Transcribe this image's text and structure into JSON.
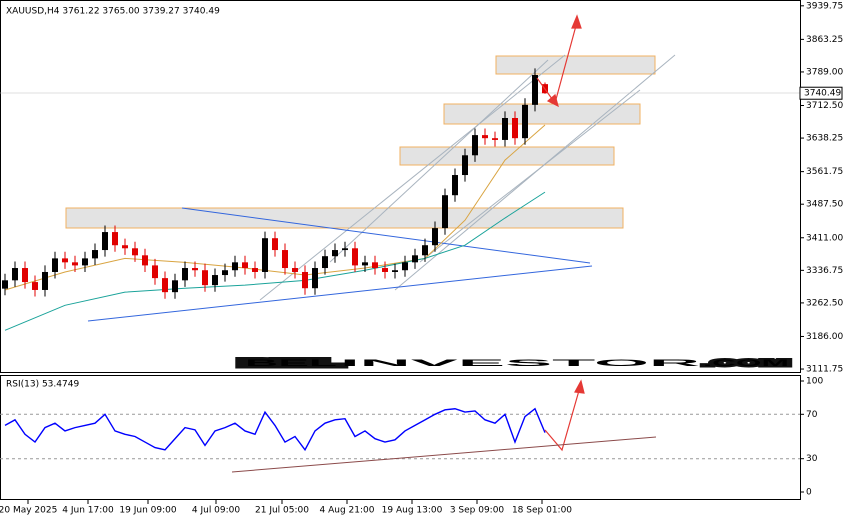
{
  "chart_data": [
    {
      "type": "candlestick",
      "title": "XAUUSD,H4  3761.22 3765.00 3739.27 3740.49",
      "watermark": [
        "BEL",
        "INVESTOR",
        ".COM"
      ],
      "open": [
        3295,
        3314,
        3342,
        3310,
        3292,
        3333,
        3364,
        3355,
        3348,
        3364,
        3383,
        3424,
        3394,
        3387,
        3371,
        3348,
        3319,
        3287,
        3314,
        3342,
        3337,
        3303,
        3326,
        3337,
        3355,
        3342,
        3333,
        3410,
        3383,
        3342,
        3333,
        3296,
        3342,
        3369,
        3383,
        3387,
        3348,
        3355,
        3342,
        3333,
        3337,
        3355,
        3371,
        3394,
        3433,
        3508,
        3554,
        3599,
        3645,
        3638,
        3634,
        3684,
        3638,
        3714,
        3761.22
      ],
      "high": [
        3329,
        3357,
        3357,
        3325,
        3348,
        3379,
        3379,
        3370,
        3379,
        3398,
        3439,
        3439,
        3409,
        3402,
        3386,
        3363,
        3334,
        3329,
        3357,
        3357,
        3352,
        3341,
        3352,
        3370,
        3370,
        3357,
        3425,
        3425,
        3398,
        3357,
        3348,
        3357,
        3384,
        3398,
        3402,
        3402,
        3370,
        3370,
        3357,
        3352,
        3370,
        3386,
        3409,
        3448,
        3523,
        3569,
        3614,
        3660,
        3660,
        3653,
        3699,
        3699,
        3729,
        3797,
        3765
      ],
      "low": [
        3280,
        3299,
        3295,
        3277,
        3277,
        3318,
        3340,
        3333,
        3333,
        3349,
        3368,
        3379,
        3372,
        3356,
        3333,
        3304,
        3272,
        3272,
        3299,
        3322,
        3288,
        3288,
        3311,
        3322,
        3327,
        3318,
        3318,
        3368,
        3327,
        3318,
        3281,
        3281,
        3327,
        3354,
        3368,
        3333,
        3333,
        3327,
        3318,
        3318,
        3322,
        3340,
        3356,
        3379,
        3418,
        3493,
        3539,
        3584,
        3623,
        3619,
        3619,
        3623,
        3623,
        3699,
        3739.27
      ],
      "close": [
        3314,
        3342,
        3310,
        3292,
        3333,
        3364,
        3355,
        3348,
        3364,
        3383,
        3424,
        3394,
        3387,
        3371,
        3348,
        3319,
        3287,
        3314,
        3342,
        3337,
        3303,
        3326,
        3337,
        3355,
        3342,
        3333,
        3410,
        3383,
        3342,
        3333,
        3296,
        3342,
        3369,
        3383,
        3387,
        3348,
        3355,
        3342,
        3333,
        3337,
        3355,
        3371,
        3394,
        3433,
        3508,
        3554,
        3599,
        3645,
        3638,
        3634,
        3684,
        3638,
        3714,
        3782,
        3740.49
      ],
      "up_color": "#000000",
      "down_color": "#e00000",
      "ma_lines": [
        {
          "color": "#d9a441",
          "x": [
            0,
            6,
            12,
            18,
            24,
            30,
            36,
            42,
            46,
            50,
            54
          ],
          "values": [
            3292,
            3333,
            3364,
            3355,
            3342,
            3326,
            3342,
            3364,
            3451,
            3588,
            3668
          ]
        },
        {
          "color": "#1aa39a",
          "x": [
            0,
            6,
            12,
            18,
            24,
            30,
            36,
            42,
            46,
            50,
            54
          ],
          "values": [
            3200,
            3257,
            3287,
            3296,
            3303,
            3314,
            3337,
            3364,
            3394,
            3456,
            3515
          ]
        }
      ],
      "xlim": [
        -0.5,
        79.5
      ],
      "ylim": [
        3105,
        3953
      ],
      "yticks": [
        3939.75,
        3863.25,
        {
          "value": 3789,
          "label": "3789.00"
        },
        {
          "value": 3712.5,
          "label": "3712.50"
        },
        3638.25,
        3561.75,
        {
          "value": 3487.5,
          "label": "3487.50"
        },
        {
          "value": 3411,
          "label": "3411.00"
        },
        3336.75,
        {
          "value": 3262.5,
          "label": "3262.50"
        },
        {
          "value": 3186,
          "label": "3186.00"
        },
        3111.75
      ],
      "xticks": [
        {
          "value": 2.3,
          "label": "20 May 2025"
        },
        {
          "value": 8.3,
          "label": "4 Jun 17:00"
        },
        {
          "value": 14.3,
          "label": "19 Jun 09:00"
        },
        {
          "value": 21.1,
          "label": "4 Jul 09:00"
        },
        {
          "value": 27.7,
          "label": "21 Jul 05:00"
        },
        {
          "value": 34.2,
          "label": "4 Aug 21:00"
        },
        {
          "value": 40.7,
          "label": "19 Aug 13:00"
        },
        {
          "value": 47.2,
          "label": "3 Sep 09:00"
        },
        {
          "value": 53.7,
          "label": "18 Sep 01:00"
        }
      ]
    },
    {
      "type": "line",
      "title": "RSI(13) 53.4749",
      "color": "#0000ff",
      "values": [
        60,
        65,
        52,
        45,
        58,
        62,
        55,
        58,
        60,
        62,
        70,
        55,
        52,
        50,
        45,
        40,
        38,
        48,
        58,
        56,
        42,
        55,
        58,
        62,
        55,
        52,
        72,
        60,
        45,
        50,
        38,
        55,
        62,
        65,
        66,
        50,
        55,
        48,
        45,
        47,
        55,
        60,
        65,
        70,
        74,
        75,
        72,
        73,
        65,
        62,
        70,
        45,
        68,
        75,
        53.4749
      ],
      "xlim": [
        -0.5,
        79.5
      ],
      "ylim": [
        0,
        100
      ],
      "yticks": [
        0,
        30,
        70,
        100
      ]
    }
  ]
}
